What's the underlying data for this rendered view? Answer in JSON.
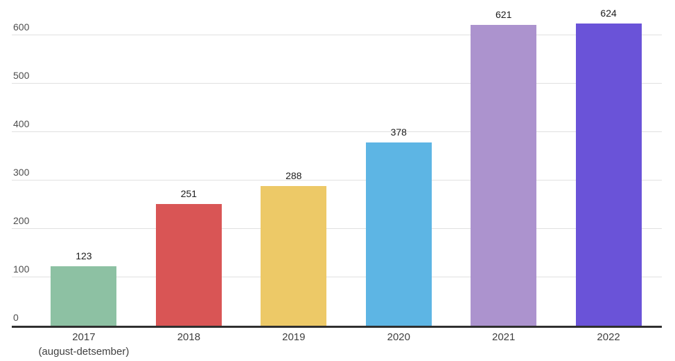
{
  "chart_data": {
    "type": "bar",
    "categories": [
      "2017",
      "2018",
      "2019",
      "2020",
      "2021",
      "2022"
    ],
    "category_sublabels": [
      "(august-detsember)",
      "",
      "",
      "",
      "",
      ""
    ],
    "values": [
      123,
      251,
      288,
      378,
      621,
      624
    ],
    "bar_colors": [
      "#8dc1a3",
      "#d95555",
      "#edc967",
      "#5db5e4",
      "#ac93ce",
      "#6a53d8"
    ],
    "yticks": [
      0,
      100,
      200,
      300,
      400,
      500,
      600
    ],
    "ylim": [
      0,
      650
    ],
    "grid": true,
    "legend": "none",
    "background_color": "#ffffff",
    "axis_color": "#2f2f2f",
    "gridline_color": "#e0e0e0",
    "value_label_color": "#1b1b1b",
    "tick_label_color": "#4e4e4e"
  }
}
